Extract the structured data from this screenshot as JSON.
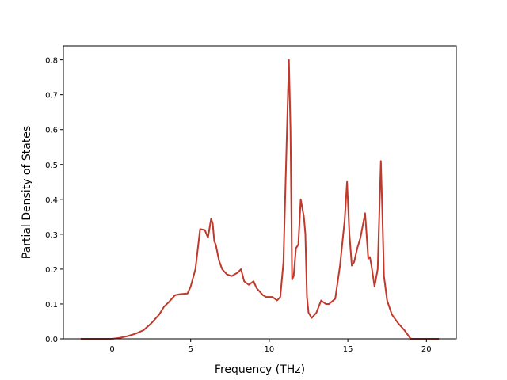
{
  "chart_data": {
    "type": "line",
    "title": "",
    "xlabel": "Frequency (THz)",
    "ylabel": "Partial Density of States",
    "xlim": [
      -3.1,
      21.9
    ],
    "ylim": [
      0.0,
      0.84
    ],
    "xticks": [
      0,
      5,
      10,
      15,
      20
    ],
    "xtick_labels": [
      "0",
      "5",
      "10",
      "15",
      "20"
    ],
    "yticks": [
      0.0,
      0.1,
      0.2,
      0.3,
      0.4,
      0.5,
      0.6,
      0.7,
      0.8
    ],
    "ytick_labels": [
      "0.0",
      "0.1",
      "0.2",
      "0.3",
      "0.4",
      "0.5",
      "0.6",
      "0.7",
      "0.8"
    ],
    "grid": false,
    "legend": null,
    "series": [
      {
        "color": "#c0392b",
        "x": [
          -2.0,
          -1.0,
          0.0,
          0.5,
          1.0,
          1.5,
          2.0,
          2.5,
          3.0,
          3.3,
          3.6,
          4.0,
          4.3,
          4.8,
          5.0,
          5.3,
          5.6,
          5.9,
          6.1,
          6.3,
          6.4,
          6.5,
          6.6,
          6.8,
          7.0,
          7.3,
          7.6,
          8.0,
          8.2,
          8.4,
          8.7,
          9.0,
          9.2,
          9.4,
          9.6,
          9.8,
          10.2,
          10.5,
          10.7,
          10.9,
          11.1,
          11.25,
          11.35,
          11.45,
          11.55,
          11.7,
          11.85,
          12.0,
          12.2,
          12.3,
          12.4,
          12.5,
          12.7,
          13.0,
          13.3,
          13.6,
          13.8,
          14.2,
          14.5,
          14.8,
          14.95,
          15.1,
          15.25,
          15.4,
          15.6,
          15.8,
          16.1,
          16.3,
          16.4,
          16.5,
          16.7,
          16.9,
          17.1,
          17.2,
          17.3,
          17.5,
          17.8,
          18.2,
          18.6,
          19.0,
          19.3,
          20.0,
          20.8
        ],
        "y": [
          0.0,
          0.0,
          0.0,
          0.003,
          0.008,
          0.015,
          0.025,
          0.045,
          0.07,
          0.092,
          0.105,
          0.125,
          0.128,
          0.13,
          0.15,
          0.2,
          0.315,
          0.312,
          0.29,
          0.345,
          0.33,
          0.28,
          0.27,
          0.225,
          0.2,
          0.185,
          0.18,
          0.19,
          0.2,
          0.165,
          0.155,
          0.165,
          0.145,
          0.135,
          0.125,
          0.12,
          0.12,
          0.11,
          0.12,
          0.22,
          0.55,
          0.8,
          0.6,
          0.17,
          0.18,
          0.26,
          0.27,
          0.4,
          0.35,
          0.3,
          0.12,
          0.075,
          0.06,
          0.075,
          0.11,
          0.1,
          0.1,
          0.115,
          0.21,
          0.34,
          0.45,
          0.3,
          0.21,
          0.22,
          0.26,
          0.29,
          0.36,
          0.23,
          0.235,
          0.21,
          0.15,
          0.2,
          0.51,
          0.35,
          0.18,
          0.11,
          0.07,
          0.045,
          0.025,
          0.0,
          0.0,
          0.0,
          0.0
        ]
      }
    ]
  }
}
